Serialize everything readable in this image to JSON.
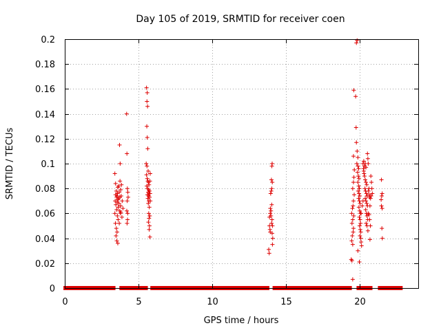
{
  "chart_data": {
    "type": "scatter",
    "title": "Day 105 of 2019, SRMTID for receiver coen",
    "xlabel": "GPS time / hours",
    "ylabel": "SRMTID / TECUs",
    "xlim": [
      0,
      24
    ],
    "ylim": [
      0,
      0.2
    ],
    "x_ticks": [
      "0",
      "5",
      "10",
      "15",
      "20"
    ],
    "y_ticks": [
      "0",
      "0.02",
      "0.04",
      "0.06",
      "0.08",
      "0.1",
      "0.12",
      "0.14",
      "0.16",
      "0.18",
      "0.2"
    ],
    "x_tick_values": [
      0,
      5,
      10,
      15,
      20
    ],
    "y_tick_values": [
      0,
      0.02,
      0.04,
      0.06,
      0.08,
      0.1,
      0.12,
      0.14,
      0.16,
      0.18,
      0.2
    ],
    "grid": true,
    "marker": "+",
    "color": "#dd0000",
    "zero_segments": [
      [
        0.05,
        3.3
      ],
      [
        3.85,
        4.15
      ],
      [
        4.35,
        5.5
      ],
      [
        5.95,
        13.75
      ],
      [
        14.25,
        19.35
      ],
      [
        19.95,
        20.75
      ],
      [
        21.4,
        22.8
      ]
    ],
    "series": [
      {
        "name": "SRMTID",
        "points": [
          [
            3.4,
            0.092
          ],
          [
            3.45,
            0.084
          ],
          [
            3.5,
            0.078
          ],
          [
            3.55,
            0.074
          ],
          [
            3.6,
            0.081
          ],
          [
            3.42,
            0.07
          ],
          [
            3.47,
            0.067
          ],
          [
            3.52,
            0.063
          ],
          [
            3.57,
            0.058
          ],
          [
            3.62,
            0.055
          ],
          [
            3.44,
            0.052
          ],
          [
            3.5,
            0.048
          ],
          [
            3.55,
            0.045
          ],
          [
            3.48,
            0.042
          ],
          [
            3.53,
            0.038
          ],
          [
            3.6,
            0.036
          ],
          [
            3.65,
            0.072
          ],
          [
            3.7,
            0.077
          ],
          [
            3.75,
            0.086
          ],
          [
            3.8,
            0.079
          ],
          [
            3.68,
            0.068
          ],
          [
            3.73,
            0.062
          ],
          [
            3.78,
            0.06
          ],
          [
            3.83,
            0.074
          ],
          [
            3.63,
            0.065
          ],
          [
            3.58,
            0.076
          ],
          [
            3.72,
            0.115
          ],
          [
            3.76,
            0.1
          ],
          [
            3.85,
            0.083
          ],
          [
            3.9,
            0.07
          ],
          [
            3.95,
            0.064
          ],
          [
            3.88,
            0.057
          ],
          [
            3.4,
            0.06
          ],
          [
            3.45,
            0.075
          ],
          [
            3.7,
            0.052
          ],
          [
            3.66,
            0.082
          ],
          [
            3.52,
            0.073
          ],
          [
            3.56,
            0.069
          ],
          [
            3.61,
            0.071
          ],
          [
            3.74,
            0.073
          ],
          [
            3.79,
            0.066
          ],
          [
            3.81,
            0.061
          ],
          [
            4.2,
            0.14
          ],
          [
            4.22,
            0.108
          ],
          [
            4.25,
            0.08
          ],
          [
            4.28,
            0.077
          ],
          [
            4.3,
            0.073
          ],
          [
            4.24,
            0.07
          ],
          [
            4.21,
            0.062
          ],
          [
            4.27,
            0.06
          ],
          [
            4.26,
            0.055
          ],
          [
            4.23,
            0.052
          ],
          [
            5.55,
            0.161
          ],
          [
            5.6,
            0.157
          ],
          [
            5.58,
            0.15
          ],
          [
            5.62,
            0.146
          ],
          [
            5.57,
            0.13
          ],
          [
            5.6,
            0.121
          ],
          [
            5.63,
            0.112
          ],
          [
            5.53,
            0.1
          ],
          [
            5.58,
            0.098
          ],
          [
            5.66,
            0.094
          ],
          [
            5.55,
            0.091
          ],
          [
            5.6,
            0.088
          ],
          [
            5.64,
            0.086
          ],
          [
            5.68,
            0.085
          ],
          [
            5.72,
            0.083
          ],
          [
            5.57,
            0.082
          ],
          [
            5.62,
            0.08
          ],
          [
            5.7,
            0.079
          ],
          [
            5.75,
            0.078
          ],
          [
            5.66,
            0.077
          ],
          [
            5.73,
            0.076
          ],
          [
            5.61,
            0.075
          ],
          [
            5.69,
            0.074
          ],
          [
            5.76,
            0.073
          ],
          [
            5.64,
            0.072
          ],
          [
            5.71,
            0.07
          ],
          [
            5.67,
            0.068
          ],
          [
            5.74,
            0.065
          ],
          [
            5.7,
            0.06
          ],
          [
            5.77,
            0.058
          ],
          [
            5.72,
            0.056
          ],
          [
            5.68,
            0.053
          ],
          [
            5.75,
            0.05
          ],
          [
            5.73,
            0.047
          ],
          [
            5.78,
            0.041
          ],
          [
            5.8,
            0.092
          ],
          [
            5.78,
            0.086
          ],
          [
            5.79,
            0.076
          ],
          [
            5.81,
            0.07
          ],
          [
            13.85,
            0.031
          ],
          [
            13.88,
            0.028
          ],
          [
            13.9,
            0.05
          ],
          [
            13.93,
            0.047
          ],
          [
            13.95,
            0.045
          ],
          [
            13.9,
            0.057
          ],
          [
            13.95,
            0.06
          ],
          [
            14.0,
            0.062
          ],
          [
            13.98,
            0.076
          ],
          [
            14.02,
            0.078
          ],
          [
            14.05,
            0.08
          ],
          [
            14.03,
            0.087
          ],
          [
            14.06,
            0.098
          ],
          [
            14.08,
            0.1
          ],
          [
            14.0,
            0.058
          ],
          [
            14.07,
            0.055
          ],
          [
            14.04,
            0.052
          ],
          [
            14.1,
            0.05
          ],
          [
            14.08,
            0.044
          ],
          [
            14.12,
            0.04
          ],
          [
            14.1,
            0.035
          ],
          [
            13.96,
            0.064
          ],
          [
            14.05,
            0.067
          ],
          [
            14.09,
            0.085
          ],
          [
            19.45,
            0.023
          ],
          [
            19.5,
            0.022
          ],
          [
            19.55,
            0.035
          ],
          [
            19.48,
            0.038
          ],
          [
            19.52,
            0.042
          ],
          [
            19.58,
            0.045
          ],
          [
            19.6,
            0.048
          ],
          [
            19.5,
            0.052
          ],
          [
            19.55,
            0.055
          ],
          [
            19.62,
            0.058
          ],
          [
            19.48,
            0.06
          ],
          [
            19.53,
            0.064
          ],
          [
            19.57,
            0.066
          ],
          [
            19.6,
            0.07
          ],
          [
            19.65,
            0.075
          ],
          [
            19.55,
            0.08
          ],
          [
            19.6,
            0.085
          ],
          [
            19.63,
            0.089
          ],
          [
            19.66,
            0.095
          ],
          [
            19.6,
            0.106
          ],
          [
            19.55,
            0.007
          ],
          [
            19.62,
            0.159
          ],
          [
            19.75,
            0.154
          ],
          [
            19.8,
            0.197
          ],
          [
            19.85,
            0.199
          ],
          [
            19.78,
            0.129
          ],
          [
            19.8,
            0.117
          ],
          [
            19.85,
            0.11
          ],
          [
            19.9,
            0.105
          ],
          [
            19.83,
            0.1
          ],
          [
            19.9,
            0.098
          ],
          [
            19.95,
            0.096
          ],
          [
            19.88,
            0.093
          ],
          [
            19.93,
            0.09
          ],
          [
            19.97,
            0.088
          ],
          [
            19.9,
            0.085
          ],
          [
            19.96,
            0.082
          ],
          [
            20.0,
            0.08
          ],
          [
            19.92,
            0.078
          ],
          [
            19.98,
            0.076
          ],
          [
            20.03,
            0.074
          ],
          [
            19.95,
            0.072
          ],
          [
            20.0,
            0.07
          ],
          [
            20.05,
            0.068
          ],
          [
            19.97,
            0.065
          ],
          [
            20.02,
            0.062
          ],
          [
            20.07,
            0.06
          ],
          [
            20.0,
            0.057
          ],
          [
            20.05,
            0.055
          ],
          [
            20.08,
            0.052
          ],
          [
            20.02,
            0.05
          ],
          [
            20.06,
            0.047
          ],
          [
            20.1,
            0.045
          ],
          [
            20.04,
            0.042
          ],
          [
            20.1,
            0.04
          ],
          [
            20.12,
            0.037
          ],
          [
            19.9,
            0.03
          ],
          [
            20.0,
            0.021
          ],
          [
            20.15,
            0.034
          ],
          [
            20.12,
            0.06
          ],
          [
            20.2,
            0.066
          ],
          [
            20.25,
            0.07
          ],
          [
            20.3,
            0.102
          ],
          [
            20.35,
            0.098
          ],
          [
            20.4,
            0.1
          ],
          [
            20.45,
            0.097
          ],
          [
            20.3,
            0.094
          ],
          [
            20.35,
            0.09
          ],
          [
            20.4,
            0.087
          ],
          [
            20.45,
            0.085
          ],
          [
            20.5,
            0.083
          ],
          [
            20.38,
            0.08
          ],
          [
            20.42,
            0.078
          ],
          [
            20.48,
            0.076
          ],
          [
            20.52,
            0.074
          ],
          [
            20.4,
            0.072
          ],
          [
            20.45,
            0.07
          ],
          [
            20.5,
            0.068
          ],
          [
            20.55,
            0.066
          ],
          [
            20.43,
            0.063
          ],
          [
            20.48,
            0.06
          ],
          [
            20.52,
            0.058
          ],
          [
            20.57,
            0.055
          ],
          [
            20.46,
            0.052
          ],
          [
            20.52,
            0.05
          ],
          [
            20.58,
            0.046
          ],
          [
            20.6,
            0.06
          ],
          [
            20.62,
            0.078
          ],
          [
            20.65,
            0.08
          ],
          [
            20.68,
            0.075
          ],
          [
            20.7,
            0.073
          ],
          [
            20.72,
            0.066
          ],
          [
            20.66,
            0.059
          ],
          [
            20.7,
            0.055
          ],
          [
            20.75,
            0.05
          ],
          [
            20.72,
            0.039
          ],
          [
            20.76,
            0.072
          ],
          [
            20.8,
            0.074
          ],
          [
            20.82,
            0.085
          ],
          [
            20.78,
            0.09
          ],
          [
            20.85,
            0.08
          ],
          [
            20.88,
            0.076
          ],
          [
            20.55,
            0.108
          ],
          [
            20.58,
            0.104
          ],
          [
            20.6,
            0.1
          ],
          [
            20.25,
            0.1
          ],
          [
            20.28,
            0.096
          ],
          [
            20.32,
            0.092
          ],
          [
            21.5,
            0.087
          ],
          [
            21.55,
            0.076
          ],
          [
            21.52,
            0.074
          ],
          [
            21.48,
            0.071
          ],
          [
            21.5,
            0.066
          ],
          [
            21.55,
            0.064
          ],
          [
            21.53,
            0.048
          ],
          [
            21.56,
            0.04
          ]
        ]
      }
    ]
  }
}
